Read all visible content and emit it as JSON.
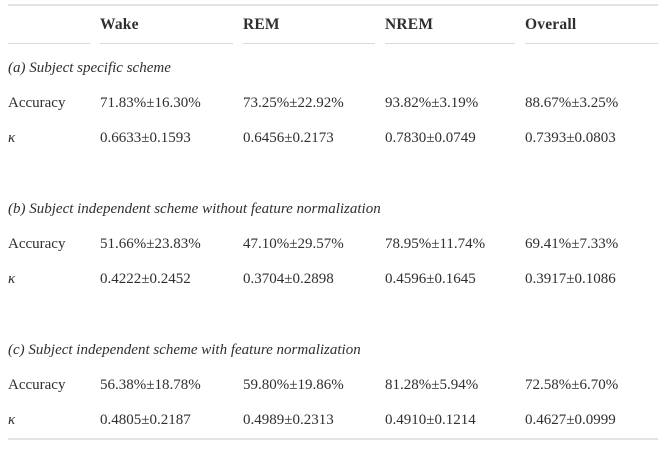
{
  "colors": {
    "text": "#2f2f2f",
    "rule_heavy": "#e3e3e3",
    "rule_light": "#d9d9d9",
    "background": "#ffffff"
  },
  "table": {
    "columns": [
      "",
      "Wake",
      "REM",
      "NREM",
      "Overall"
    ],
    "sections": [
      {
        "title": "(a) Subject specific scheme",
        "rows": [
          {
            "label": "Accuracy",
            "values": [
              "71.83%±16.30%",
              "73.25%±22.92%",
              "93.82%±3.19%",
              "88.67%±3.25%"
            ]
          },
          {
            "label": "κ",
            "values": [
              "0.6633±0.1593",
              "0.6456±0.2173",
              "0.7830±0.0749",
              "0.7393±0.0803"
            ]
          }
        ]
      },
      {
        "title": "(b) Subject independent scheme without feature normalization",
        "rows": [
          {
            "label": "Accuracy",
            "values": [
              "51.66%±23.83%",
              "47.10%±29.57%",
              "78.95%±11.74%",
              "69.41%±7.33%"
            ]
          },
          {
            "label": "κ",
            "values": [
              "0.4222±0.2452",
              "0.3704±0.2898",
              "0.4596±0.1645",
              "0.3917±0.1086"
            ]
          }
        ]
      },
      {
        "title": "(c) Subject independent scheme with feature normalization",
        "rows": [
          {
            "label": "Accuracy",
            "values": [
              "56.38%±18.78%",
              "59.80%±19.86%",
              "81.28%±5.94%",
              "72.58%±6.70%"
            ]
          },
          {
            "label": "κ",
            "values": [
              "0.4805±0.2187",
              "0.4989±0.2313",
              "0.4910±0.1214",
              "0.4627±0.0999"
            ]
          }
        ]
      }
    ]
  }
}
